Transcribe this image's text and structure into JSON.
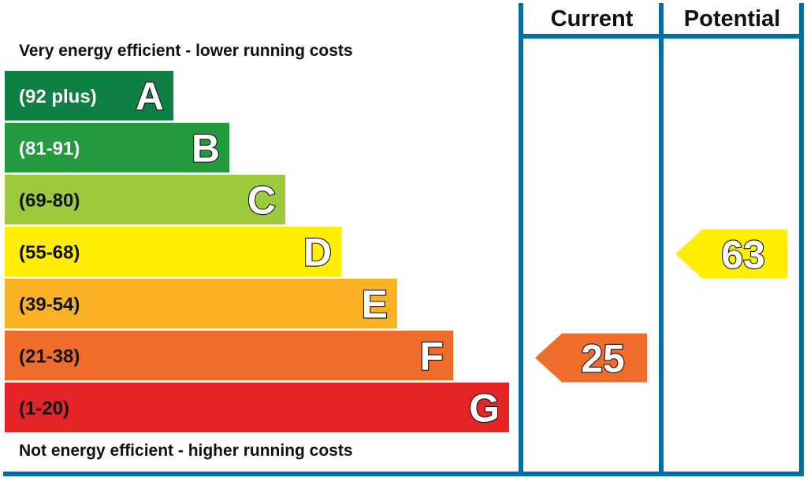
{
  "chart_data": {
    "type": "bar",
    "top_caption": "Very energy efficient - lower running costs",
    "bottom_caption": "Not energy efficient - higher running costs",
    "columns": {
      "current": "Current",
      "potential": "Potential"
    },
    "bands": [
      {
        "letter": "A",
        "range": "(92 plus)",
        "min": 92,
        "max": 100,
        "color": "#0f8043",
        "text_color": "#ffffff"
      },
      {
        "letter": "B",
        "range": "(81-91)",
        "min": 81,
        "max": 91,
        "color": "#249a3f",
        "text_color": "#ffffff"
      },
      {
        "letter": "C",
        "range": "(69-80)",
        "min": 69,
        "max": 80,
        "color": "#9cca3c",
        "text_color": "#111111"
      },
      {
        "letter": "D",
        "range": "(55-68)",
        "min": 55,
        "max": 68,
        "color": "#ffee00",
        "text_color": "#111111"
      },
      {
        "letter": "E",
        "range": "(39-54)",
        "min": 39,
        "max": 54,
        "color": "#fbb224",
        "text_color": "#111111"
      },
      {
        "letter": "F",
        "range": "(21-38)",
        "min": 21,
        "max": 38,
        "color": "#f06c2a",
        "text_color": "#111111"
      },
      {
        "letter": "G",
        "range": "(1-20)",
        "min": 1,
        "max": 20,
        "color": "#e42426",
        "text_color": "#111111"
      }
    ],
    "ratings": {
      "current": {
        "value": 25,
        "label": "25"
      },
      "potential": {
        "value": 63,
        "label": "63"
      }
    },
    "frame_color": "#0070a4"
  }
}
